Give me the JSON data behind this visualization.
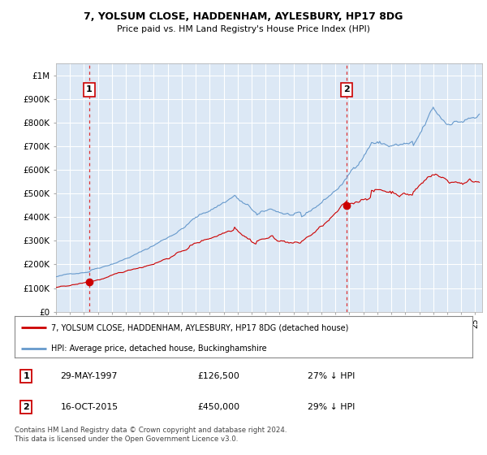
{
  "title": "7, YOLSUM CLOSE, HADDENHAM, AYLESBURY, HP17 8DG",
  "subtitle": "Price paid vs. HM Land Registry's House Price Index (HPI)",
  "bg_color": "#dce8f5",
  "ylim": [
    0,
    1050000
  ],
  "xlim_start": 1995.0,
  "xlim_end": 2025.5,
  "yticks": [
    0,
    100000,
    200000,
    300000,
    400000,
    500000,
    600000,
    700000,
    800000,
    900000,
    1000000
  ],
  "ytick_labels": [
    "£0",
    "£100K",
    "£200K",
    "£300K",
    "£400K",
    "£500K",
    "£600K",
    "£700K",
    "£800K",
    "£900K",
    "£1M"
  ],
  "sale1_date": 1997.38,
  "sale1_price": 126500,
  "sale1_label": "1",
  "sale2_date": 2015.79,
  "sale2_price": 450000,
  "sale2_label": "2",
  "legend_line1": "7, YOLSUM CLOSE, HADDENHAM, AYLESBURY, HP17 8DG (detached house)",
  "legend_line2": "HPI: Average price, detached house, Buckinghamshire",
  "footer": "Contains HM Land Registry data © Crown copyright and database right 2024.\nThis data is licensed under the Open Government Licence v3.0.",
  "line_red_color": "#cc0000",
  "line_blue_color": "#6699cc",
  "vline_color": "#dd3333",
  "marker_color": "#cc0000",
  "grid_color": "#ffffff"
}
